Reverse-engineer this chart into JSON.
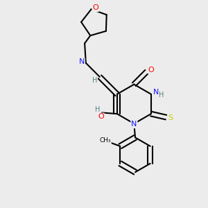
{
  "background_color": "#ececec",
  "bond_color": "#000000",
  "atom_colors": {
    "O": "#ff0000",
    "N": "#1414ff",
    "S": "#cccc00",
    "C": "#000000",
    "H": "#508080"
  },
  "title": ""
}
